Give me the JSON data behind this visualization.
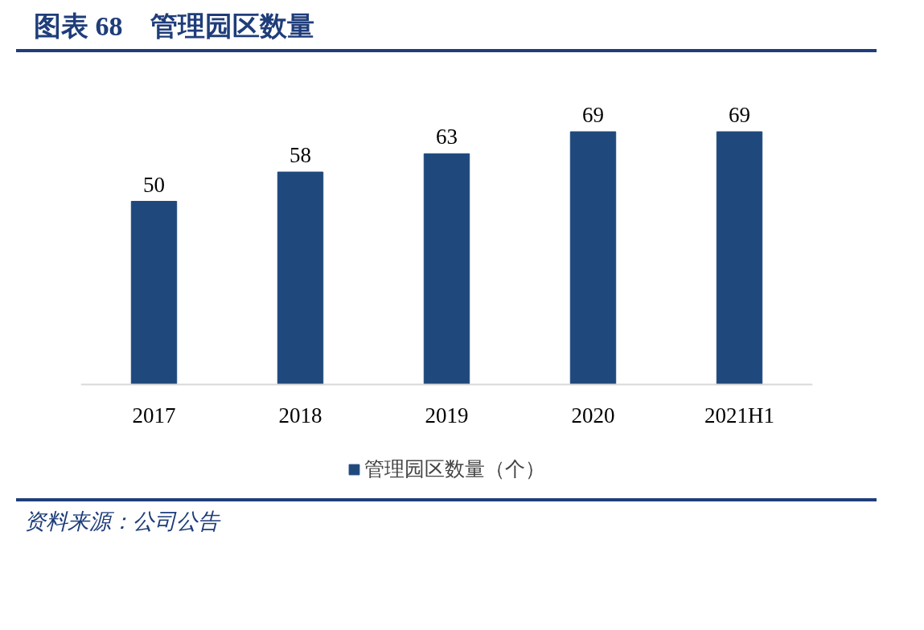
{
  "chart_data": {
    "type": "bar",
    "title": "图表 68　管理园区数量",
    "categories": [
      "2017",
      "2018",
      "2019",
      "2020",
      "2021H1"
    ],
    "series": [
      {
        "name": "管理园区数量（个）",
        "color": "#1f497d",
        "values": [
          50,
          58,
          63,
          69,
          69
        ]
      }
    ],
    "data_labels": true,
    "legend": "bottom",
    "grid": false,
    "annotations": [
      "资料来源：公司公告"
    ]
  }
}
